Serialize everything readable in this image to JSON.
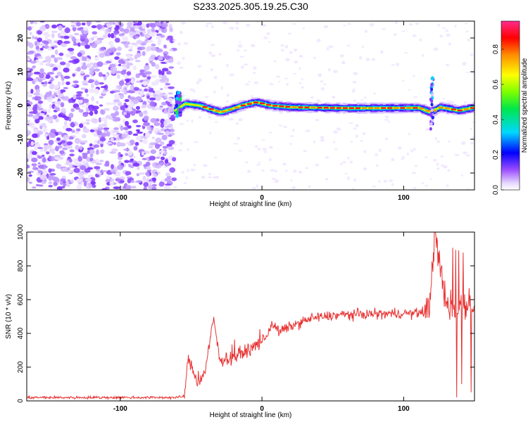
{
  "title": "S233.2025.305.19.25.C30",
  "colorbar": {
    "label": "Normalized spectral amplitude",
    "ticks": [
      "0.0",
      "0.2",
      "0.4",
      "0.6",
      "0.8"
    ],
    "tick_values": [
      0.0,
      0.2,
      0.4,
      0.6,
      0.8
    ],
    "range": [
      0.0,
      0.96
    ]
  },
  "chart_data": [
    {
      "type": "heatmap",
      "title": "",
      "xlabel": "Height of straight line (km)",
      "ylabel": "Frequency (Hz)",
      "xlim": [
        -166,
        150
      ],
      "ylim": [
        -25,
        25
      ],
      "xticks": [
        -100,
        0,
        100
      ],
      "xtick_labels": [
        "-100",
        "0",
        "100"
      ],
      "yticks": [
        20,
        10,
        0,
        -10,
        -20
      ],
      "ytick_labels": [
        "20",
        "10",
        "0",
        "-10",
        "-20"
      ],
      "noise_region_x": [
        -166,
        -62
      ],
      "signal_start_x": -62,
      "signal_track": [
        {
          "x": -62,
          "y": -1.5
        },
        {
          "x": -55,
          "y": 0.5
        },
        {
          "x": -45,
          "y": 0.0
        },
        {
          "x": -38,
          "y": -1.0
        },
        {
          "x": -30,
          "y": -2.0
        },
        {
          "x": -22,
          "y": -1.0
        },
        {
          "x": -15,
          "y": 0.0
        },
        {
          "x": -5,
          "y": 1.0
        },
        {
          "x": 5,
          "y": 0.0
        },
        {
          "x": 20,
          "y": -0.5
        },
        {
          "x": 60,
          "y": -0.8
        },
        {
          "x": 110,
          "y": -0.7
        },
        {
          "x": 118,
          "y": -2.0
        },
        {
          "x": 125,
          "y": -0.5
        },
        {
          "x": 138,
          "y": -1.5
        },
        {
          "x": 150,
          "y": -0.5
        }
      ],
      "spike_x": 120
    },
    {
      "type": "line",
      "title": "",
      "xlabel": "Height of straight line (km)",
      "ylabel": "SNR (10 * v/v)",
      "xlim": [
        -166,
        150
      ],
      "ylim": [
        0,
        1000
      ],
      "xticks": [
        -100,
        0,
        100
      ],
      "xtick_labels": [
        "-100",
        "0",
        "100"
      ],
      "yticks": [
        0,
        200,
        400,
        600,
        800,
        1000
      ],
      "ytick_labels": [
        "0",
        "200",
        "400",
        "600",
        "800",
        "1000"
      ],
      "color": "#e83232",
      "series_points": [
        {
          "x": -166,
          "y": 20
        },
        {
          "x": -62,
          "y": 20
        },
        {
          "x": -55,
          "y": 25
        },
        {
          "x": -52,
          "y": 250
        },
        {
          "x": -45,
          "y": 100
        },
        {
          "x": -40,
          "y": 180
        },
        {
          "x": -34,
          "y": 490
        },
        {
          "x": -30,
          "y": 240
        },
        {
          "x": -20,
          "y": 260
        },
        {
          "x": -10,
          "y": 300
        },
        {
          "x": -2,
          "y": 340
        },
        {
          "x": 3,
          "y": 380
        },
        {
          "x": 7,
          "y": 460
        },
        {
          "x": 12,
          "y": 410
        },
        {
          "x": 20,
          "y": 440
        },
        {
          "x": 35,
          "y": 490
        },
        {
          "x": 55,
          "y": 510
        },
        {
          "x": 80,
          "y": 515
        },
        {
          "x": 110,
          "y": 520
        },
        {
          "x": 118,
          "y": 540
        },
        {
          "x": 122,
          "y": 1010
        },
        {
          "x": 130,
          "y": 560
        },
        {
          "x": 150,
          "y": 580
        }
      ]
    }
  ]
}
